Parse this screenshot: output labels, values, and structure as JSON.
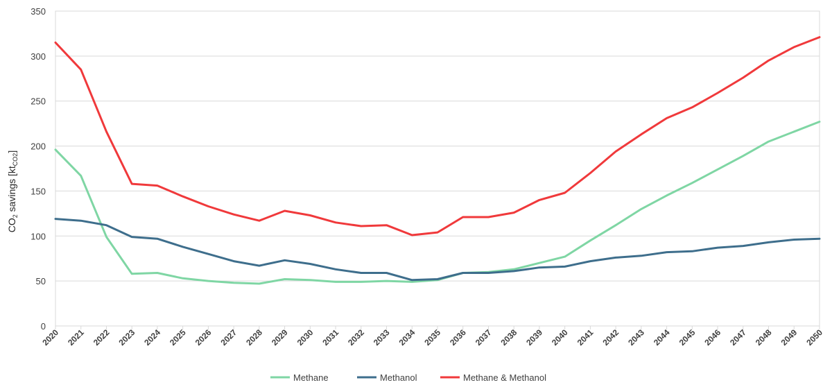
{
  "chart_data": {
    "type": "line",
    "ylabel": {
      "prefix": "CO",
      "sub": "2",
      "middle": " savings [kt",
      "unit_sub": "CO2",
      "suffix": "]"
    },
    "ylim": [
      0,
      350
    ],
    "yticks": [
      0,
      50,
      100,
      150,
      200,
      250,
      300,
      350
    ],
    "grid": true,
    "legend_position": "bottom",
    "x": [
      "2020",
      "2021",
      "2022",
      "2023",
      "2024",
      "2025",
      "2026",
      "2027",
      "2028",
      "2029",
      "2030",
      "2031",
      "2032",
      "2033",
      "2034",
      "2035",
      "2036",
      "2037",
      "2038",
      "2039",
      "2040",
      "2041",
      "2042",
      "2043",
      "2044",
      "2045",
      "2046",
      "2047",
      "2048",
      "2049",
      "2050"
    ],
    "series": [
      {
        "name": "Methane",
        "color": "#7fd6a4",
        "values": [
          196,
          167,
          99,
          58,
          59,
          53,
          50,
          48,
          47,
          52,
          51,
          49,
          49,
          50,
          49,
          51,
          59,
          60,
          63,
          70,
          77,
          95,
          112,
          130,
          145,
          159,
          174,
          189,
          205,
          216,
          227
        ]
      },
      {
        "name": "Methanol",
        "color": "#3e6e8c",
        "values": [
          119,
          117,
          112,
          99,
          97,
          88,
          80,
          72,
          67,
          73,
          69,
          63,
          59,
          59,
          51,
          52,
          59,
          59,
          61,
          65,
          66,
          72,
          76,
          78,
          82,
          83,
          87,
          89,
          93,
          96,
          97
        ]
      },
      {
        "name": "Methane & Methanol",
        "color": "#f0393b",
        "values": [
          315,
          285,
          216,
          158,
          156,
          144,
          133,
          124,
          117,
          128,
          123,
          115,
          111,
          112,
          101,
          104,
          121,
          121,
          126,
          140,
          148,
          170,
          194,
          213,
          231,
          243,
          259,
          276,
          295,
          310,
          321
        ]
      }
    ]
  }
}
